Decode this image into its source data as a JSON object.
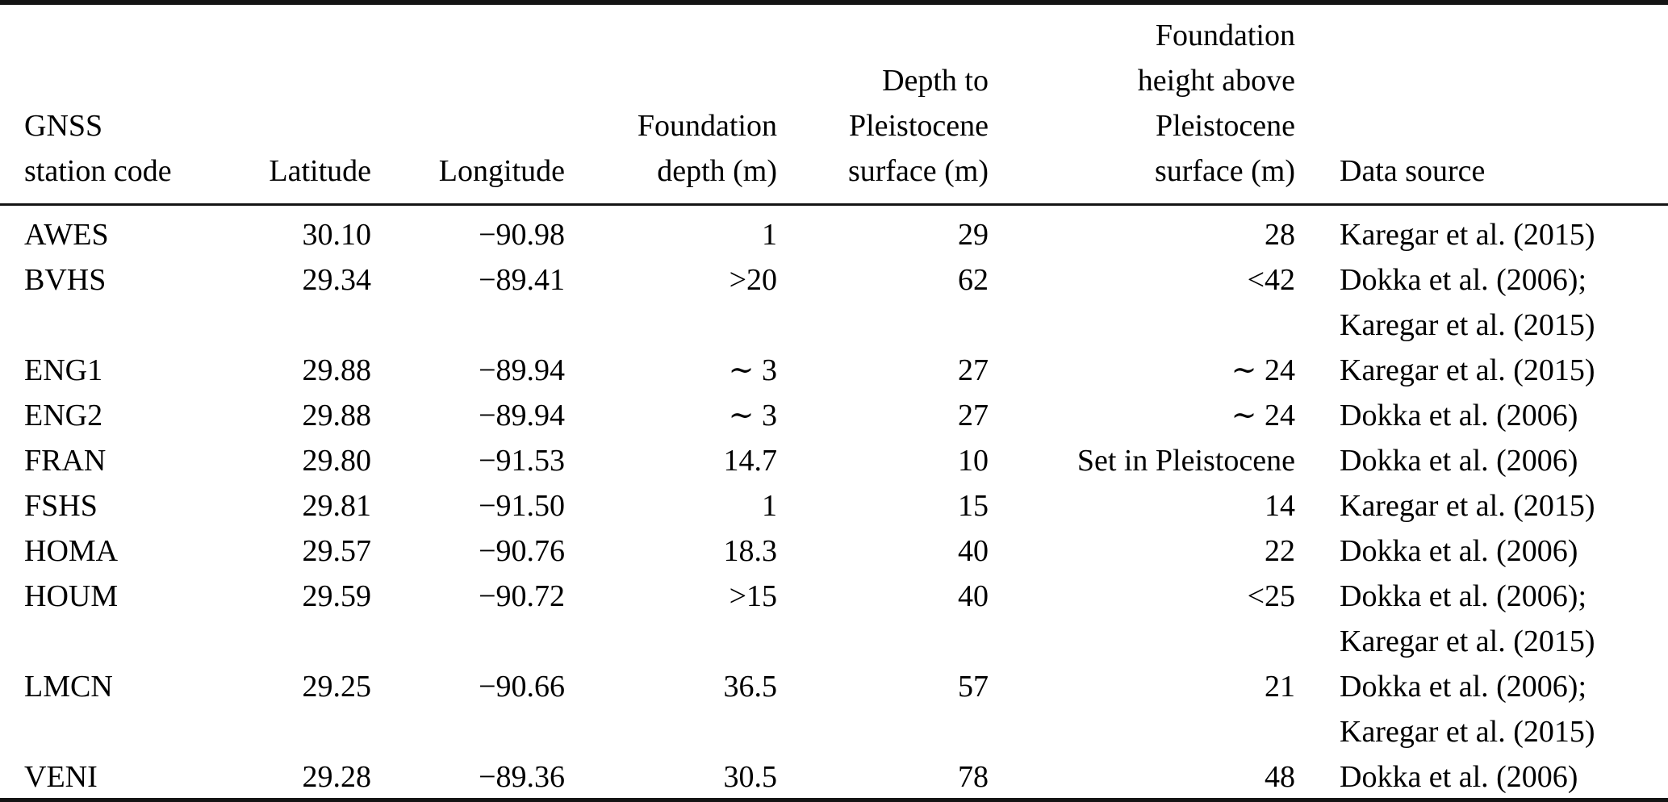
{
  "document": {
    "kind": "academic-paper-table",
    "description_visible_content_only": true
  },
  "colors": {
    "text": "#000000",
    "background": "#ffffff",
    "rule": "#141414"
  },
  "table": {
    "columns": [
      {
        "id": "station-code",
        "header_lines": [
          "GNSS",
          "station code"
        ]
      },
      {
        "id": "latitude",
        "header_lines": [
          "Latitude"
        ]
      },
      {
        "id": "longitude",
        "header_lines": [
          "Longitude"
        ]
      },
      {
        "id": "foundation-depth",
        "header_lines": [
          "Foundation",
          "depth (m)"
        ]
      },
      {
        "id": "depth-to-pleistocene",
        "header_lines": [
          "Depth to",
          "Pleistocene",
          "surface (m)"
        ]
      },
      {
        "id": "foundation-height",
        "header_lines": [
          "Foundation",
          "height above",
          "Pleistocene",
          "surface (m)"
        ]
      },
      {
        "id": "data-source",
        "header_lines": [
          "Data source"
        ]
      }
    ],
    "rows": [
      [
        "AWES",
        "30.10",
        "−90.98",
        "1",
        "29",
        "28",
        "Karegar et al. (2015)"
      ],
      [
        "BVHS",
        "29.34",
        "−89.41",
        ">20",
        "62",
        "<42",
        "Dokka et al. (2006);"
      ],
      [
        "",
        "",
        "",
        "",
        "",
        "",
        "Karegar et al. (2015)"
      ],
      [
        "ENG1",
        "29.88",
        "−89.94",
        "∼ 3",
        "27",
        "∼ 24",
        "Karegar et al. (2015)"
      ],
      [
        "ENG2",
        "29.88",
        "−89.94",
        "∼ 3",
        "27",
        "∼ 24",
        "Dokka et al. (2006)"
      ],
      [
        "FRAN",
        "29.80",
        "−91.53",
        "14.7",
        "10",
        "Set in Pleistocene",
        "Dokka et al. (2006)"
      ],
      [
        "FSHS",
        "29.81",
        "−91.50",
        "1",
        "15",
        "14",
        "Karegar et al. (2015)"
      ],
      [
        "HOMA",
        "29.57",
        "−90.76",
        "18.3",
        "40",
        "22",
        "Dokka et al. (2006)"
      ],
      [
        "HOUM",
        "29.59",
        "−90.72",
        ">15",
        "40",
        "<25",
        "Dokka et al. (2006);"
      ],
      [
        "",
        "",
        "",
        "",
        "",
        "",
        "Karegar et al. (2015)"
      ],
      [
        "LMCN",
        "29.25",
        "−90.66",
        "36.5",
        "57",
        "21",
        "Dokka et al. (2006);"
      ],
      [
        "",
        "",
        "",
        "",
        "",
        "",
        "Karegar et al. (2015)"
      ],
      [
        "VENI",
        "29.28",
        "−89.36",
        "30.5",
        "78",
        "48",
        "Dokka et al. (2006)"
      ]
    ]
  }
}
